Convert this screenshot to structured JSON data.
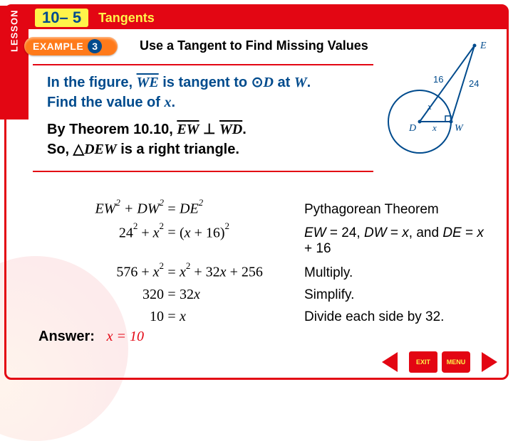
{
  "lesson": {
    "tab": "LESSON",
    "number": "10– 5",
    "title": "Tangents"
  },
  "example": {
    "label": "EXAMPLE",
    "number": "3",
    "title": "Use a Tangent to Find Missing Values"
  },
  "problem": {
    "line1_prefix": "In the figure, ",
    "line1_seg": "WE",
    "line1_mid": " is tangent to ",
    "line1_circ": "D",
    "line1_at": " at ",
    "line1_pt": "W",
    "line1_end": ".",
    "line2_prefix": "Find the value of ",
    "line2_var": "x",
    "line2_end": ".",
    "line3_prefix": "By Theorem 10.10, ",
    "line3_seg1": "EW",
    "line3_seg2": "WD",
    "line3_end": ".",
    "line4_prefix": "So, ",
    "line4_tri": "DEW",
    "line4_end": " is a right triangle."
  },
  "diagram": {
    "points": {
      "E": "E",
      "D": "D",
      "W": "W"
    },
    "labels": {
      "sixteen": "16",
      "twentyfour": "24",
      "x1": "x",
      "x2": "x"
    },
    "colors": {
      "stroke": "#004b8d",
      "text": "#004b8d",
      "fill": "#ffffff"
    }
  },
  "steps": [
    {
      "lhs": "EW<sup>2</sup> + DW<sup>2</sup>",
      "rhs": "DE<sup>2</sup>",
      "reason": "Pythagorean Theorem",
      "lhs_ital": true,
      "rhs_ital": true
    },
    {
      "lhs": "24<sup>2</sup> + <span class=\"ital\">x</span><sup>2</sup>",
      "rhs": "(<span class=\"ital\">x</span> + 16)<sup>2</sup>",
      "reason": "<span class=\"ital\">EW</span> = 24, <span class=\"ital\">DW</span> = <span class=\"ital\">x</span>, and <span class=\"ital\">DE</span> = <span class=\"ital\">x</span> + 16"
    },
    {
      "lhs": "576 + <span class=\"ital\">x</span><sup>2</sup>",
      "rhs": "<span class=\"ital\">x</span><sup>2</sup> + 32<span class=\"ital\">x</span> + 256",
      "reason": "Multiply."
    },
    {
      "lhs": "320",
      "rhs": "32<span class=\"ital\">x</span>",
      "reason": "Simplify."
    },
    {
      "lhs": "10",
      "rhs": "<span class=\"ital\">x</span>",
      "reason": "Divide each side by 32."
    }
  ],
  "answer": {
    "label": "Answer:",
    "value": "x = 10"
  },
  "nav": {
    "exit": "EXIT",
    "menu": "MENU"
  }
}
